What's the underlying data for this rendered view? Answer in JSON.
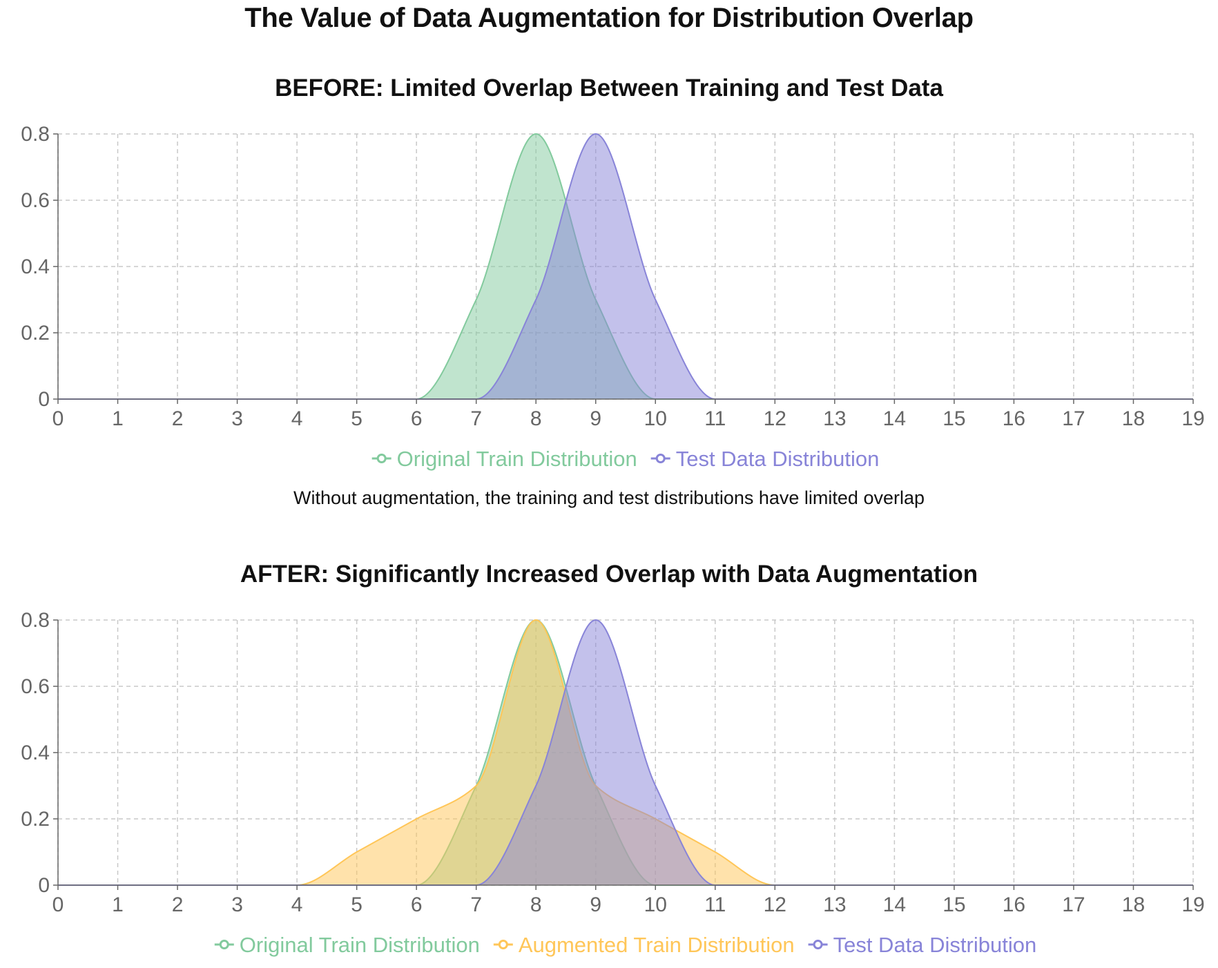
{
  "title": "The Value of Data Augmentation for Distribution Overlap",
  "caption_before": "Without augmentation, the training and test distributions have limited overlap",
  "colors": {
    "original": "#82ca9d",
    "augmented": "#ffc658",
    "test": "#8884d8"
  },
  "chart_data": [
    {
      "type": "area",
      "title": "BEFORE: Limited Overlap Between Training and Test Data",
      "xlabel": "",
      "ylabel": "",
      "xlim": [
        0,
        19
      ],
      "ylim": [
        0,
        0.8
      ],
      "x_ticks": [
        "0",
        "1",
        "2",
        "3",
        "4",
        "5",
        "6",
        "7",
        "8",
        "9",
        "10",
        "11",
        "12",
        "13",
        "14",
        "15",
        "16",
        "17",
        "18",
        "19"
      ],
      "y_ticks": [
        "0",
        "0.2",
        "0.4",
        "0.6",
        "0.8"
      ],
      "grid": true,
      "legend_position": "bottom",
      "x": [
        0,
        1,
        2,
        3,
        4,
        5,
        6,
        7,
        8,
        9,
        10,
        11,
        12,
        13,
        14,
        15,
        16,
        17,
        18,
        19
      ],
      "series": [
        {
          "name": "Original Train Distribution",
          "color_key": "original",
          "values": [
            0,
            0,
            0,
            0,
            0,
            0,
            0,
            0.3,
            0.8,
            0.3,
            0,
            0,
            0,
            0,
            0,
            0,
            0,
            0,
            0,
            0
          ]
        },
        {
          "name": "Test Data Distribution",
          "color_key": "test",
          "values": [
            0,
            0,
            0,
            0,
            0,
            0,
            0,
            0,
            0.3,
            0.8,
            0.3,
            0,
            0,
            0,
            0,
            0,
            0,
            0,
            0,
            0
          ]
        }
      ]
    },
    {
      "type": "area",
      "title": "AFTER: Significantly Increased Overlap with Data Augmentation",
      "xlabel": "",
      "ylabel": "",
      "xlim": [
        0,
        19
      ],
      "ylim": [
        0,
        0.8
      ],
      "x_ticks": [
        "0",
        "1",
        "2",
        "3",
        "4",
        "5",
        "6",
        "7",
        "8",
        "9",
        "10",
        "11",
        "12",
        "13",
        "14",
        "15",
        "16",
        "17",
        "18",
        "19"
      ],
      "y_ticks": [
        "0",
        "0.2",
        "0.4",
        "0.6",
        "0.8"
      ],
      "grid": true,
      "legend_position": "bottom",
      "x": [
        0,
        1,
        2,
        3,
        4,
        5,
        6,
        7,
        8,
        9,
        10,
        11,
        12,
        13,
        14,
        15,
        16,
        17,
        18,
        19
      ],
      "series": [
        {
          "name": "Original Train Distribution",
          "color_key": "original",
          "values": [
            0,
            0,
            0,
            0,
            0,
            0,
            0,
            0.3,
            0.8,
            0.3,
            0,
            0,
            0,
            0,
            0,
            0,
            0,
            0,
            0,
            0
          ]
        },
        {
          "name": "Augmented Train Distribution",
          "color_key": "augmented",
          "values": [
            0,
            0,
            0,
            0,
            0,
            0.1,
            0.2,
            0.3,
            0.8,
            0.3,
            0.2,
            0.1,
            0,
            0,
            0,
            0,
            0,
            0,
            0,
            0
          ]
        },
        {
          "name": "Test Data Distribution",
          "color_key": "test",
          "values": [
            0,
            0,
            0,
            0,
            0,
            0,
            0,
            0,
            0.3,
            0.8,
            0.3,
            0,
            0,
            0,
            0,
            0,
            0,
            0,
            0,
            0
          ]
        }
      ]
    }
  ]
}
